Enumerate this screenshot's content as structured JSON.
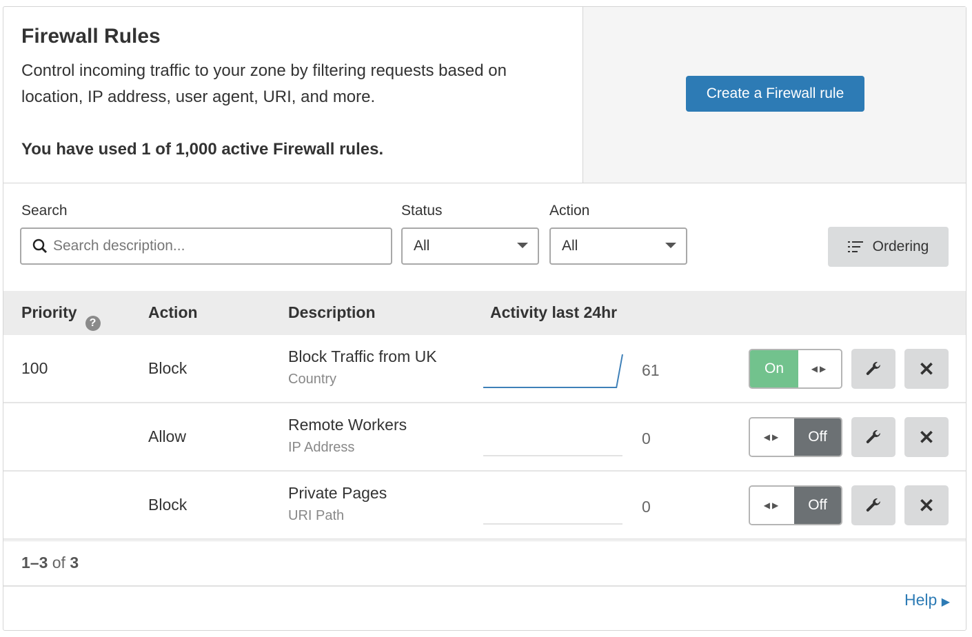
{
  "header": {
    "title": "Firewall Rules",
    "description": "Control incoming traffic to your zone by filtering requests based on location, IP address, user agent, URI, and more.",
    "usage": "You have used 1 of 1,000 active Firewall rules.",
    "create_button": "Create a Firewall rule"
  },
  "filters": {
    "search_label": "Search",
    "search_placeholder": "Search description...",
    "status_label": "Status",
    "status_value": "All",
    "action_label": "Action",
    "action_value": "All",
    "ordering_button": "Ordering"
  },
  "table": {
    "columns": [
      "Priority",
      "Action",
      "Description",
      "Activity last 24hr"
    ],
    "rows": [
      {
        "priority": "100",
        "action": "Block",
        "description": "Block Traffic from UK",
        "type": "Country",
        "activity_count": "61",
        "enabled": true,
        "toggle_label": "On",
        "sparkline": [
          0,
          0,
          0,
          0,
          0,
          0,
          0,
          0,
          0,
          0,
          0,
          0,
          0,
          0,
          0,
          0,
          0,
          0,
          0,
          0,
          0,
          0,
          0,
          61
        ]
      },
      {
        "priority": "",
        "action": "Allow",
        "description": "Remote Workers",
        "type": "IP Address",
        "activity_count": "0",
        "enabled": false,
        "toggle_label": "Off",
        "sparkline": [
          0,
          0,
          0,
          0,
          0,
          0,
          0,
          0,
          0,
          0,
          0,
          0,
          0,
          0,
          0,
          0,
          0,
          0,
          0,
          0,
          0,
          0,
          0,
          0
        ]
      },
      {
        "priority": "",
        "action": "Block",
        "description": "Private Pages",
        "type": "URI Path",
        "activity_count": "0",
        "enabled": false,
        "toggle_label": "Off",
        "sparkline": [
          0,
          0,
          0,
          0,
          0,
          0,
          0,
          0,
          0,
          0,
          0,
          0,
          0,
          0,
          0,
          0,
          0,
          0,
          0,
          0,
          0,
          0,
          0,
          0
        ]
      }
    ]
  },
  "pagination": {
    "range": "1–3",
    "of": "of",
    "total": "3"
  },
  "help_link": "Help",
  "colors": {
    "primary": "#2d7bb5",
    "toggle_on": "#72c28d",
    "toggle_off": "#6c7174"
  }
}
